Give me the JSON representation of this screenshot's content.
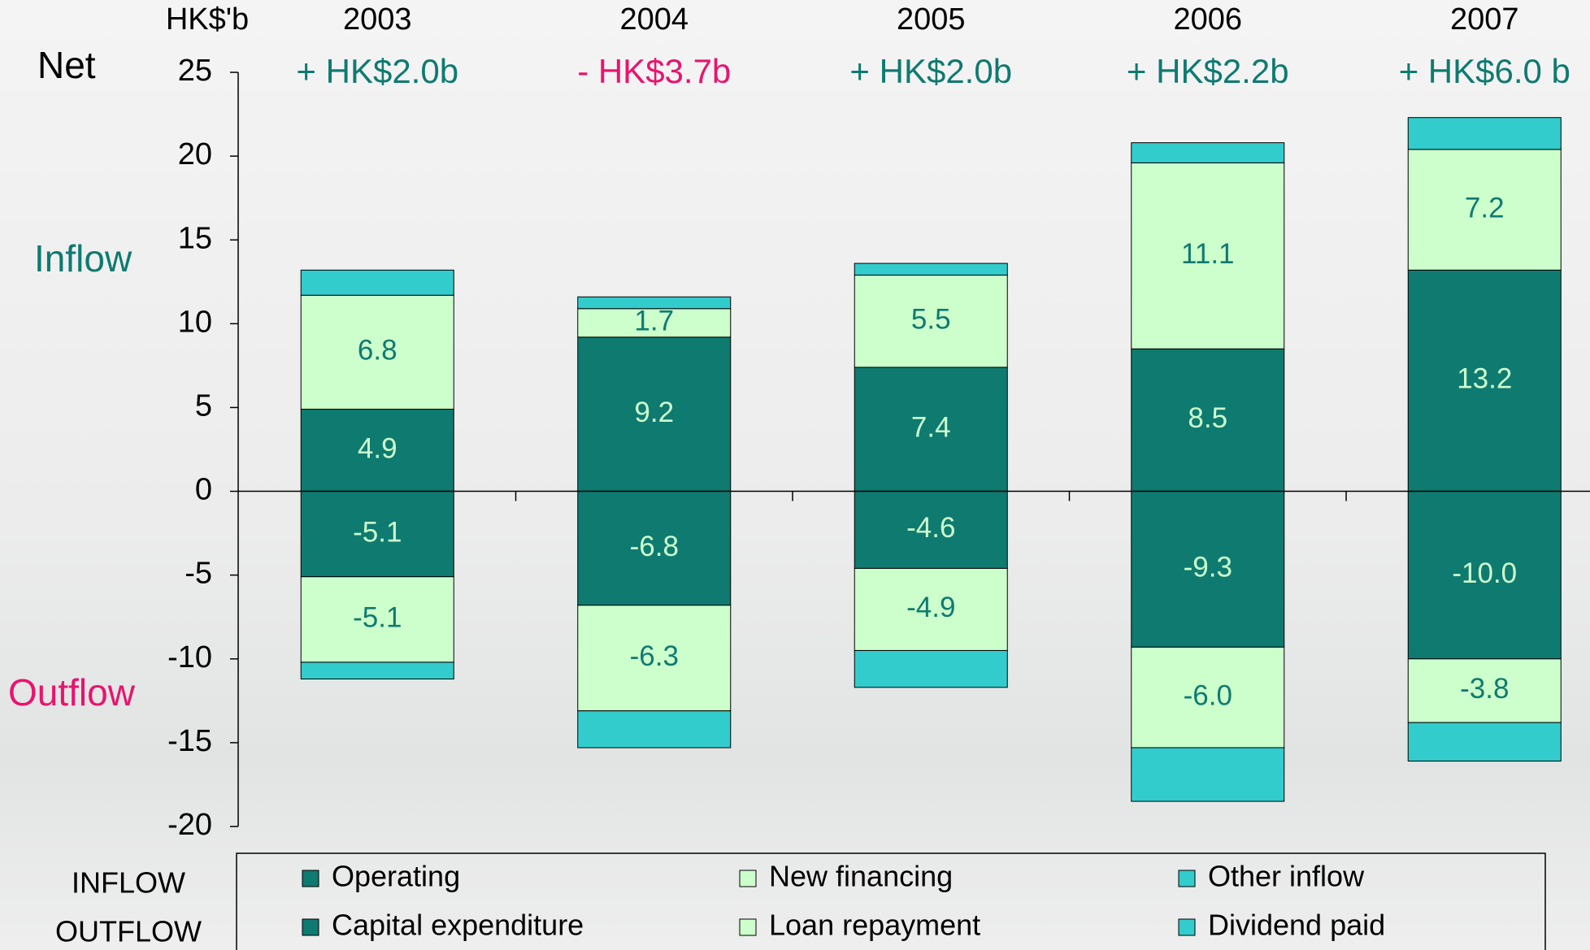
{
  "chart_data": {
    "type": "stacked-bar",
    "unit_label": "HK$'b",
    "net_title": "Net",
    "inflow_title": "Inflow",
    "outflow_title": "Outflow",
    "categories": [
      "2003",
      "2004",
      "2005",
      "2006",
      "2007"
    ],
    "net_labels": [
      {
        "text": "+ HK$2.0b",
        "color": "#0f7a70"
      },
      {
        "text": "- HK$3.7b",
        "color": "#e8146e"
      },
      {
        "text": "+ HK$2.0b",
        "color": "#0f7a70"
      },
      {
        "text": "+ HK$2.2b",
        "color": "#0f7a70"
      },
      {
        "text": "+ HK$6.0 b",
        "color": "#0f7a70"
      }
    ],
    "series": [
      {
        "name": "Operating",
        "color": "#0f7a70",
        "values": [
          4.9,
          9.2,
          7.4,
          8.5,
          13.2
        ],
        "value_labels": [
          "4.9",
          "9.2",
          "7.4",
          "8.5",
          "13.2"
        ]
      },
      {
        "name": "New financing",
        "color": "#ccffcc",
        "values": [
          6.8,
          1.7,
          5.5,
          11.1,
          7.2
        ],
        "value_labels": [
          "6.8",
          "1.7",
          "5.5",
          "11.1",
          "7.2"
        ]
      },
      {
        "name": "Other inflow",
        "color": "#33cccc",
        "values": [
          1.5,
          0.7,
          0.7,
          1.2,
          1.9
        ]
      },
      {
        "name": "Capital expenditure",
        "color": "#0f7a70",
        "values": [
          -5.1,
          -6.8,
          -4.6,
          -9.3,
          -10
        ],
        "value_labels": [
          "-5.1",
          "-6.8",
          "-4.6",
          "-9.3",
          "-10.0"
        ]
      },
      {
        "name": "Loan repayment",
        "color": "#ccffcc",
        "values": [
          -5.1,
          -6.3,
          -4.9,
          -6,
          -3.8
        ],
        "value_labels": [
          "-5.1",
          "-6.3",
          "-4.9",
          "-6.0",
          "-3.8"
        ]
      },
      {
        "name": "Dividend paid",
        "color": "#33cccc",
        "values": [
          -1,
          -2.2,
          -2.2,
          -3.2,
          -2.3
        ]
      }
    ],
    "legend_rows": [
      "INFLOW",
      "OUTFLOW"
    ],
    "ylim": [
      -20,
      25
    ],
    "yticks": [
      -20,
      -15,
      -10,
      -5,
      0,
      5,
      10,
      15,
      20,
      25
    ],
    "grid": false
  }
}
